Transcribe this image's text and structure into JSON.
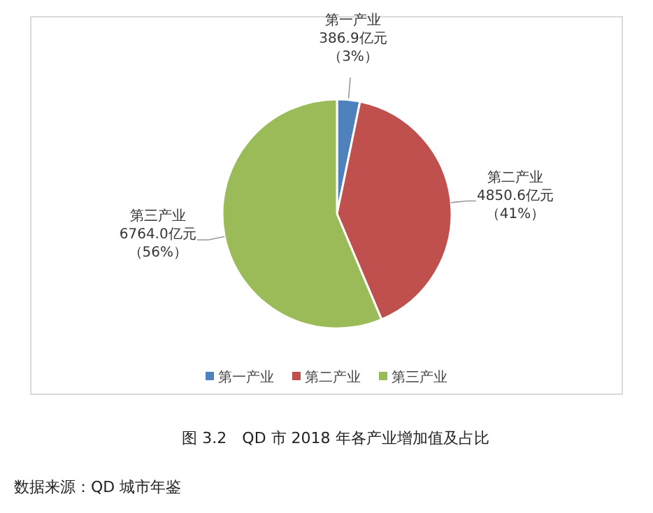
{
  "chart_data": {
    "type": "pie",
    "title": "图 3.2　QD 市 2018 年各产业增加值及占比",
    "categories": [
      "第一产业",
      "第二产业",
      "第三产业"
    ],
    "values": [
      386.9,
      4850.6,
      6764.0
    ],
    "colors": [
      "#4f81bd",
      "#c0504d",
      "#9bbb59"
    ],
    "value_labels": [
      "386.9亿元（3%）",
      "4850.6亿元（41%）",
      "6764.0亿元（56%）"
    ],
    "legend": "bottom",
    "annotations": [
      "数据来源：QD 城市年鉴"
    ]
  }
}
